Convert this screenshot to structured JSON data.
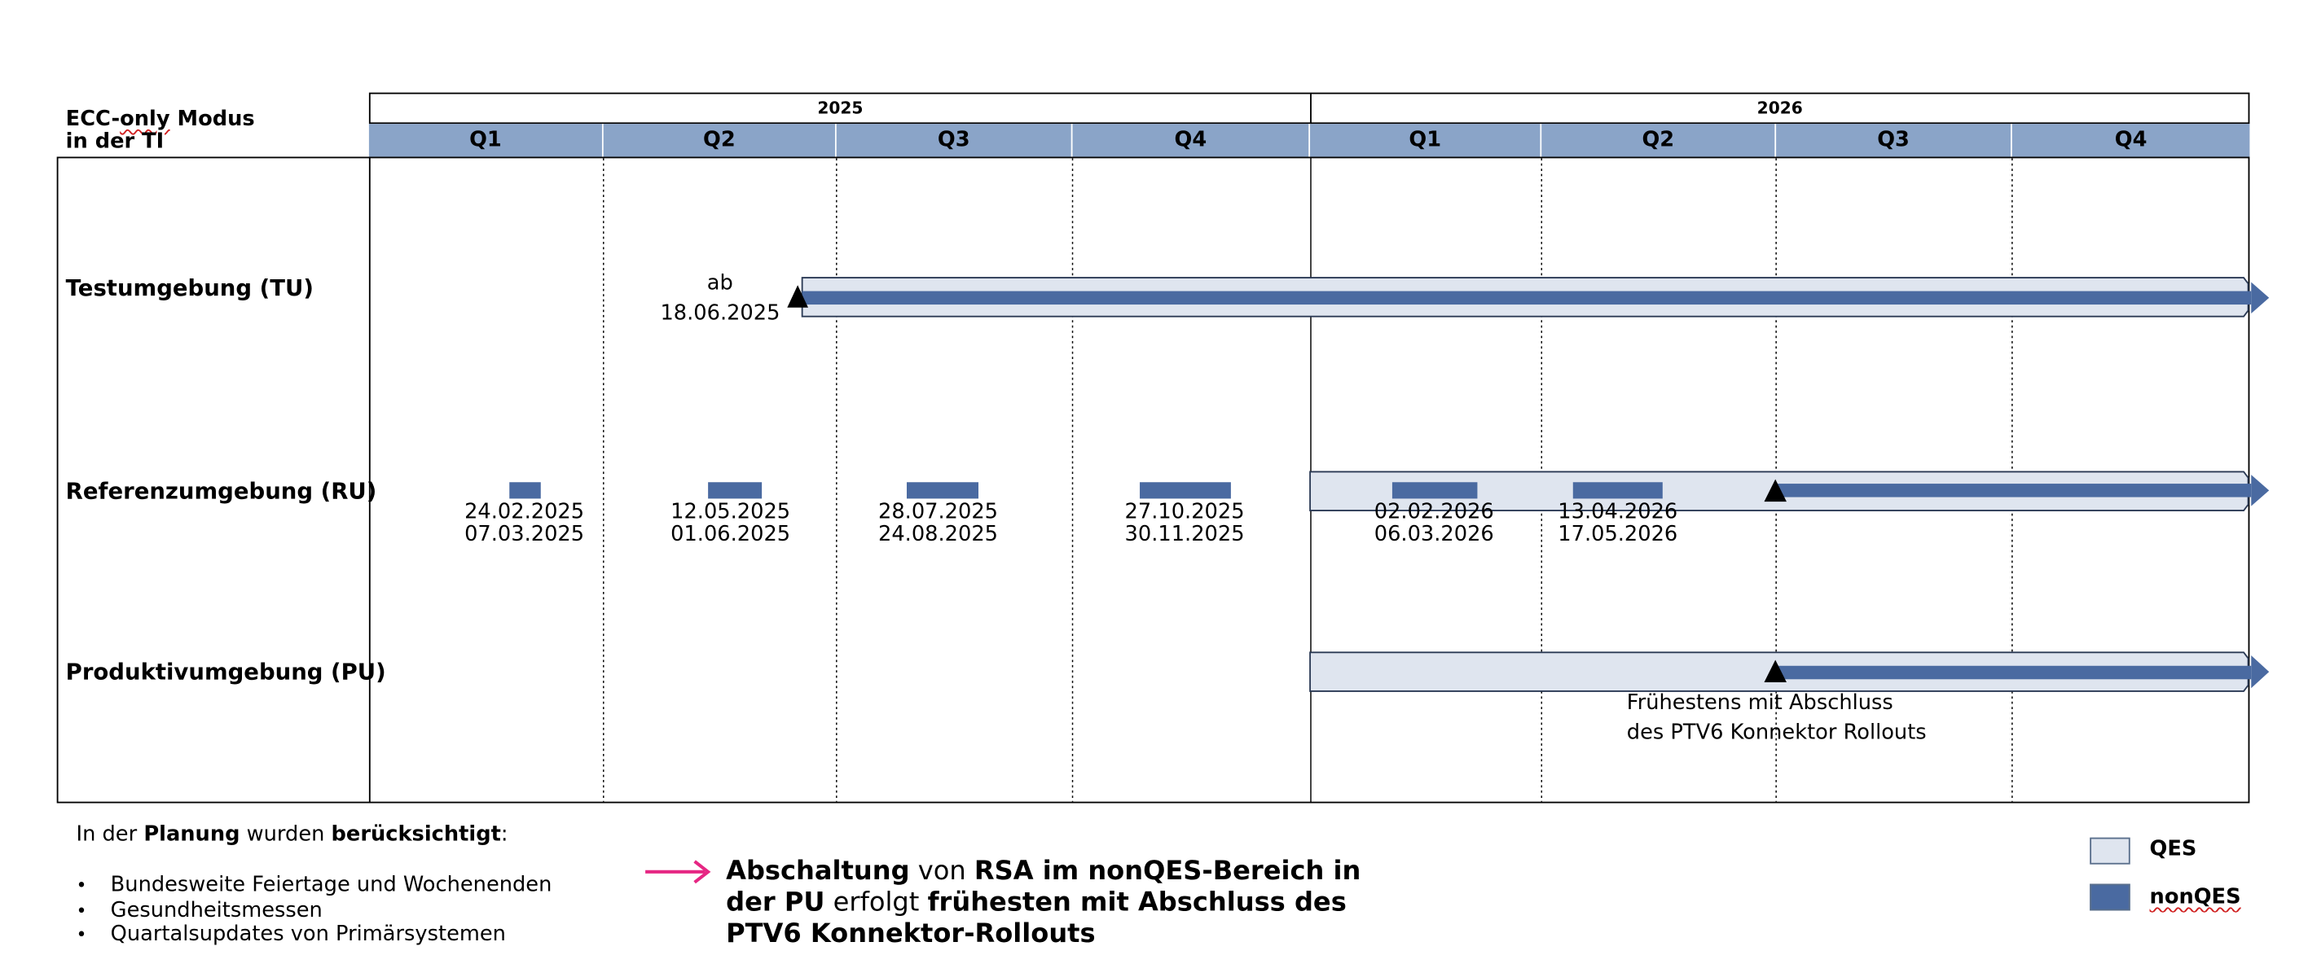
{
  "header": {
    "title_line1": "ECC-only Modus",
    "title_line2": "in der TI"
  },
  "years": [
    "2025",
    "2026"
  ],
  "quarters": [
    "Q1",
    "Q2",
    "Q3",
    "Q4",
    "Q1",
    "Q2",
    "Q3",
    "Q4"
  ],
  "rows": {
    "tu": "Testumgebung (TU)",
    "ru": "Referenzumgebung (RU)",
    "pu": "Produktivumgebung (PU)"
  },
  "tu_start": {
    "line1": "ab",
    "line2": "18.06.2025"
  },
  "ru_windows": [
    {
      "start": "24.02.2025",
      "end": "07.03.2025"
    },
    {
      "start": "12.05.2025",
      "end": "01.06.2025"
    },
    {
      "start": "28.07.2025",
      "end": "24.08.2025"
    },
    {
      "start": "27.10.2025",
      "end": "30.11.2025"
    },
    {
      "start": "02.02.2026",
      "end": "06.03.2026"
    },
    {
      "start": "13.04.2026",
      "end": "17.05.2026"
    }
  ],
  "pu_note": {
    "line1": "Frühestens mit Abschluss",
    "line2": "des PTV6 Konnektor Rollouts"
  },
  "planning": {
    "intro_prefix": "In der ",
    "intro_bold1": "Planung",
    "intro_mid": " wurden ",
    "intro_bold2": "berücksichtigt",
    "intro_suffix": ":",
    "items": [
      "Bundesweite Feiertage und Wochenenden",
      "Gesundheitsmessen",
      "Quartalsupdates von Primärsystemen"
    ]
  },
  "statement": {
    "b1": "Abschaltung",
    "t1": " von ",
    "b2": "RSA im nonQES-Bereich in der PU",
    "t2": " erfolgt ",
    "b3": "frühesten mit Abschluss des PTV6 Konnektor-Rollouts"
  },
  "legend": {
    "qes": "QES",
    "nonqes": "nonQES"
  },
  "colors": {
    "quarter_header": "#8aa4c8",
    "qes_fill": "#dfe5ef",
    "nonqes_fill": "#4a6aa1",
    "arrow_accent": "#e62683"
  }
}
